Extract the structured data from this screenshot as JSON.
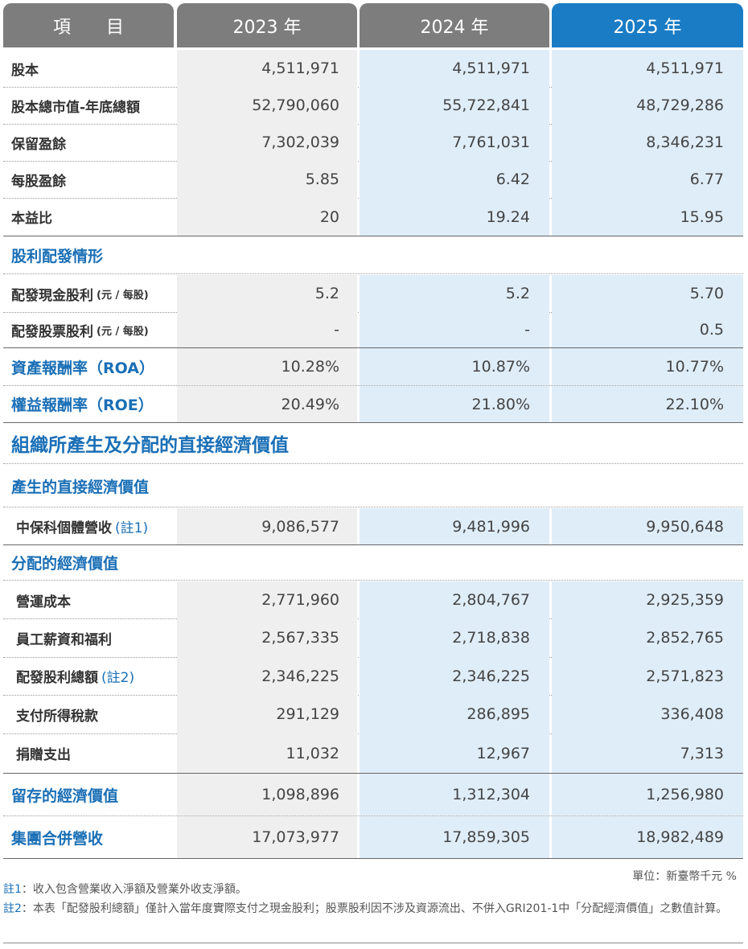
{
  "header": {
    "item": "項　　目",
    "y2023": "2023 年",
    "y2024": "2024 年",
    "y2025": "2025 年"
  },
  "rows_top": [
    {
      "label": "股本",
      "v": [
        "4,511,971",
        "4,511,971",
        "4,511,971"
      ]
    },
    {
      "label": "股本總市值-年底總額",
      "v": [
        "52,790,060",
        "55,722,841",
        "48,729,286"
      ]
    },
    {
      "label": "保留盈餘",
      "v": [
        "7,302,039",
        "7,761,031",
        "8,346,231"
      ]
    },
    {
      "label": "每股盈餘",
      "v": [
        "5.85",
        "6.42",
        "6.77"
      ]
    },
    {
      "label": "本益比",
      "v": [
        "20",
        "19.24",
        "15.95"
      ]
    }
  ],
  "dividend": {
    "title": "股利配發情形",
    "cash": {
      "label": "配發現金股利",
      "unit": "(元 / 每股)",
      "v": [
        "5.2",
        "5.2",
        "5.70"
      ]
    },
    "stock": {
      "label": "配發股票股利",
      "unit": "(元 / 每股)",
      "v": [
        "-",
        "-",
        "0.5"
      ]
    }
  },
  "roa": {
    "label": "資產報酬率（ROA）",
    "v": [
      "10.28%",
      "10.87%",
      "10.77%"
    ]
  },
  "roe": {
    "label": "權益報酬率（ROE）",
    "v": [
      "20.49%",
      "21.80%",
      "22.10%"
    ]
  },
  "econ": {
    "title": "組織所產生及分配的直接經濟價值",
    "generated_title": "產生的直接經濟價值",
    "revenue": {
      "label": "中保科個體營收",
      "note": "(註1)",
      "v": [
        "9,086,577",
        "9,481,996",
        "9,950,648"
      ]
    },
    "distributed_title": "分配的經濟價值",
    "rows": [
      {
        "label": "營運成本",
        "v": [
          "2,771,960",
          "2,804,767",
          "2,925,359"
        ]
      },
      {
        "label": "員工薪資和福利",
        "v": [
          "2,567,335",
          "2,718,838",
          "2,852,765"
        ]
      },
      {
        "label": "配發股利總額",
        "note": "(註2)",
        "v": [
          "2,346,225",
          "2,346,225",
          "2,571,823"
        ]
      },
      {
        "label": "支付所得稅款",
        "v": [
          "291,129",
          "286,895",
          "336,408"
        ]
      },
      {
        "label": "捐贈支出",
        "v": [
          "11,032",
          "12,967",
          "7,313"
        ]
      }
    ],
    "retained": {
      "label": "留存的經濟價值",
      "v": [
        "1,098,896",
        "1,312,304",
        "1,256,980"
      ]
    },
    "consolidated": {
      "label": "集團合併營收",
      "v": [
        "17,073,977",
        "17,859,305",
        "18,982,489"
      ]
    }
  },
  "unit": "單位：新臺幣千元 %",
  "notes": [
    {
      "tag": "註1",
      "text": "：收入包含營業收入淨額及營業外收支淨額。"
    },
    {
      "tag": "註2",
      "text": "：本表「配發股利總額」僅計入當年度實際支付之現金股利；股票股利因不涉及資源流出、不併入GRI201-1中「分配經濟價值」之數值計算。"
    }
  ]
}
